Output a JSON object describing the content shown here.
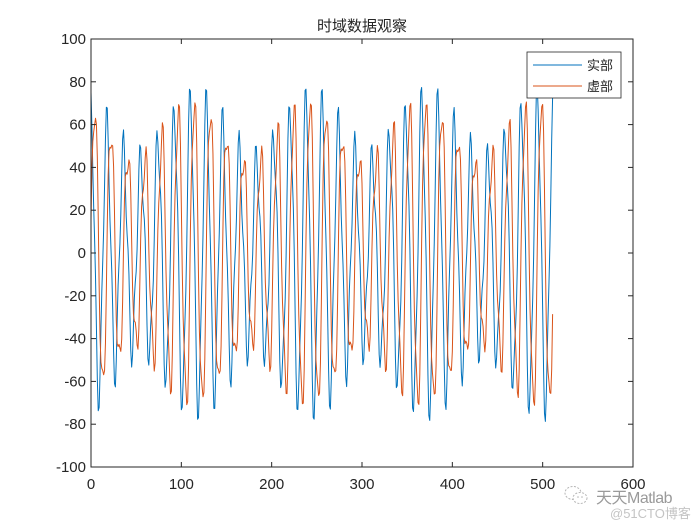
{
  "figure": {
    "title": "时域数据观察",
    "background": "#ffffff"
  },
  "watermark": {
    "line1": "天天Matlab",
    "line2": "@51CTO博客",
    "icon": "wechat-bubble-icon"
  },
  "chart_data": {
    "type": "line",
    "title": "时域数据观察",
    "xlabel": "",
    "ylabel": "",
    "xlim": [
      0,
      600
    ],
    "ylim": [
      -100,
      100
    ],
    "xticks": [
      0,
      100,
      200,
      300,
      400,
      500,
      600
    ],
    "yticks": [
      -100,
      -80,
      -60,
      -40,
      -20,
      0,
      20,
      40,
      60,
      80,
      100
    ],
    "grid": false,
    "legend_position": "northeast",
    "x_range": {
      "start": 0,
      "end": 511,
      "step": 1
    },
    "series": [
      {
        "name": "实部",
        "color": "#0072BD",
        "model": "sum of cosines",
        "components": [
          {
            "amp": 58,
            "period": 18.3,
            "phase": 0.0
          },
          {
            "amp": 14,
            "period": 16.0,
            "phase": 0.6
          },
          {
            "amp": 9,
            "period": 6.1,
            "phase": 0.9
          }
        ]
      },
      {
        "name": "虚部",
        "color": "#D95319",
        "model": "sum of cosines",
        "components": [
          {
            "amp": 58,
            "period": 18.3,
            "phase": -1.5708
          },
          {
            "amp": 14,
            "period": 16.0,
            "phase": -0.97
          },
          {
            "amp": 9,
            "period": 6.1,
            "phase": -0.67
          }
        ]
      }
    ],
    "value_envelope": {
      "max_approx": 87,
      "min_approx": -81
    }
  }
}
